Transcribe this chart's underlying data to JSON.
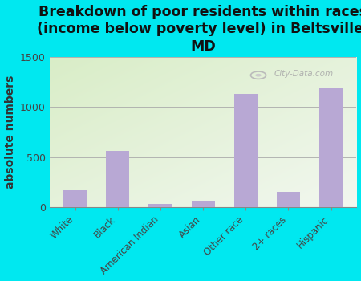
{
  "title": "Breakdown of poor residents within races\n(income below poverty level) in Beltsville,\nMD",
  "categories": [
    "White",
    "Black",
    "American Indian",
    "Asian",
    "Other race",
    "2+ races",
    "Hispanic"
  ],
  "values": [
    170,
    560,
    30,
    65,
    1130,
    155,
    1195
  ],
  "bar_color": "#b8a8d4",
  "ylabel": "absolute numbers",
  "ylim": [
    0,
    1500
  ],
  "yticks": [
    0,
    500,
    1000,
    1500
  ],
  "bg_outer": "#00e8f0",
  "bg_plot_topleft": "#d8eec8",
  "bg_plot_bottomright": "#f5f5e0",
  "watermark": "City-Data.com",
  "title_fontsize": 12.5,
  "ylabel_fontsize": 10
}
